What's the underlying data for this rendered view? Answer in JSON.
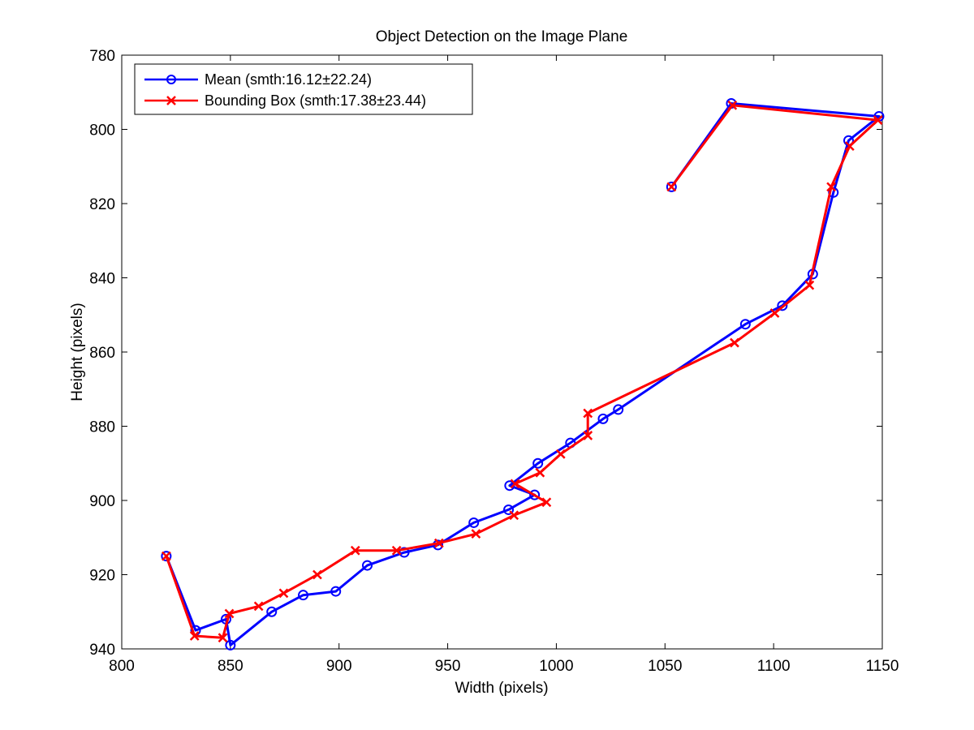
{
  "chart_data": {
    "type": "line",
    "title": "Object Detection on the Image Plane",
    "xlabel": "Width (pixels)",
    "ylabel": "Height (pixels)",
    "xlim": [
      800,
      1150
    ],
    "ylim": [
      780,
      940
    ],
    "y_reversed": true,
    "xticks": [
      800,
      850,
      900,
      950,
      1000,
      1050,
      1100,
      1150
    ],
    "yticks": [
      780,
      800,
      820,
      840,
      860,
      880,
      900,
      920,
      940
    ],
    "grid": false,
    "legend_position": "top-left",
    "series": [
      {
        "name": "Mean (smth:16.12±22.24)",
        "color": "#0000ff",
        "marker": "circle",
        "x": [
          1053,
          1080.5,
          1148.5,
          1134.5,
          1127.5,
          1118,
          1104,
          1087,
          1028.5,
          1021.5,
          1006.5,
          991.5,
          978.5,
          990,
          978,
          962,
          945.5,
          930,
          913,
          898.5,
          883.5,
          869,
          850,
          848,
          834,
          820.5
        ],
        "y": [
          815.5,
          793,
          796.5,
          803,
          817,
          839,
          847.5,
          852.5,
          875.5,
          878,
          884.5,
          890,
          896,
          898.5,
          902.5,
          906,
          912,
          914,
          917.5,
          924.5,
          925.5,
          930,
          939,
          932,
          935,
          915
        ]
      },
      {
        "name": "Bounding Box (smth:17.38±23.44)",
        "color": "#ff0000",
        "marker": "x",
        "x": [
          1053,
          1081,
          1148,
          1135,
          1126.5,
          1116.5,
          1100.5,
          1082,
          1014.5,
          1014.5,
          1002,
          992.5,
          981,
          995.5,
          980.5,
          963,
          946,
          926.5,
          907.5,
          890,
          874.5,
          863,
          849.5,
          846.5,
          833.5,
          820.5
        ],
        "y": [
          815.5,
          793.5,
          797.5,
          804.5,
          815.5,
          842,
          849.5,
          857.5,
          876.5,
          882.5,
          887.5,
          892.5,
          895.5,
          900.5,
          904,
          909,
          911.5,
          913.5,
          913.5,
          920,
          925,
          928.5,
          930.5,
          937,
          936.5,
          915
        ]
      }
    ]
  }
}
